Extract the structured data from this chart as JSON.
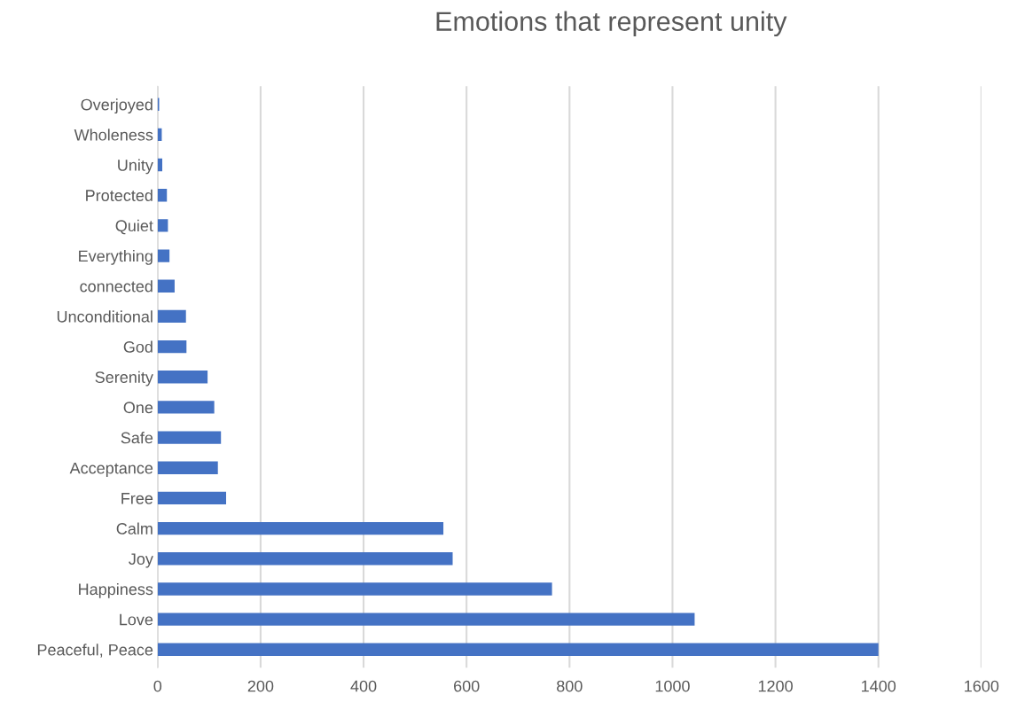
{
  "chart_data": {
    "type": "bar",
    "orientation": "horizontal",
    "title": "Emotions that represent unity",
    "categories": [
      "Overjoyed",
      "Wholeness",
      "Unity",
      "Protected",
      "Quiet",
      "Everything",
      "connected",
      "Unconditional",
      "God",
      "Serenity",
      "One",
      "Safe",
      "Acceptance",
      "Free",
      "Calm",
      "Joy",
      "Happiness",
      "Love",
      "Peaceful, Peace"
    ],
    "values": [
      3,
      8,
      9,
      18,
      20,
      23,
      33,
      55,
      56,
      97,
      110,
      123,
      117,
      133,
      555,
      573,
      766,
      1043,
      1400
    ],
    "color": "#4472c4",
    "xlim": [
      0,
      1600
    ],
    "xticks": [
      0,
      200,
      400,
      600,
      800,
      1000,
      1200,
      1400,
      1600
    ],
    "grid": "x",
    "legend": false
  }
}
